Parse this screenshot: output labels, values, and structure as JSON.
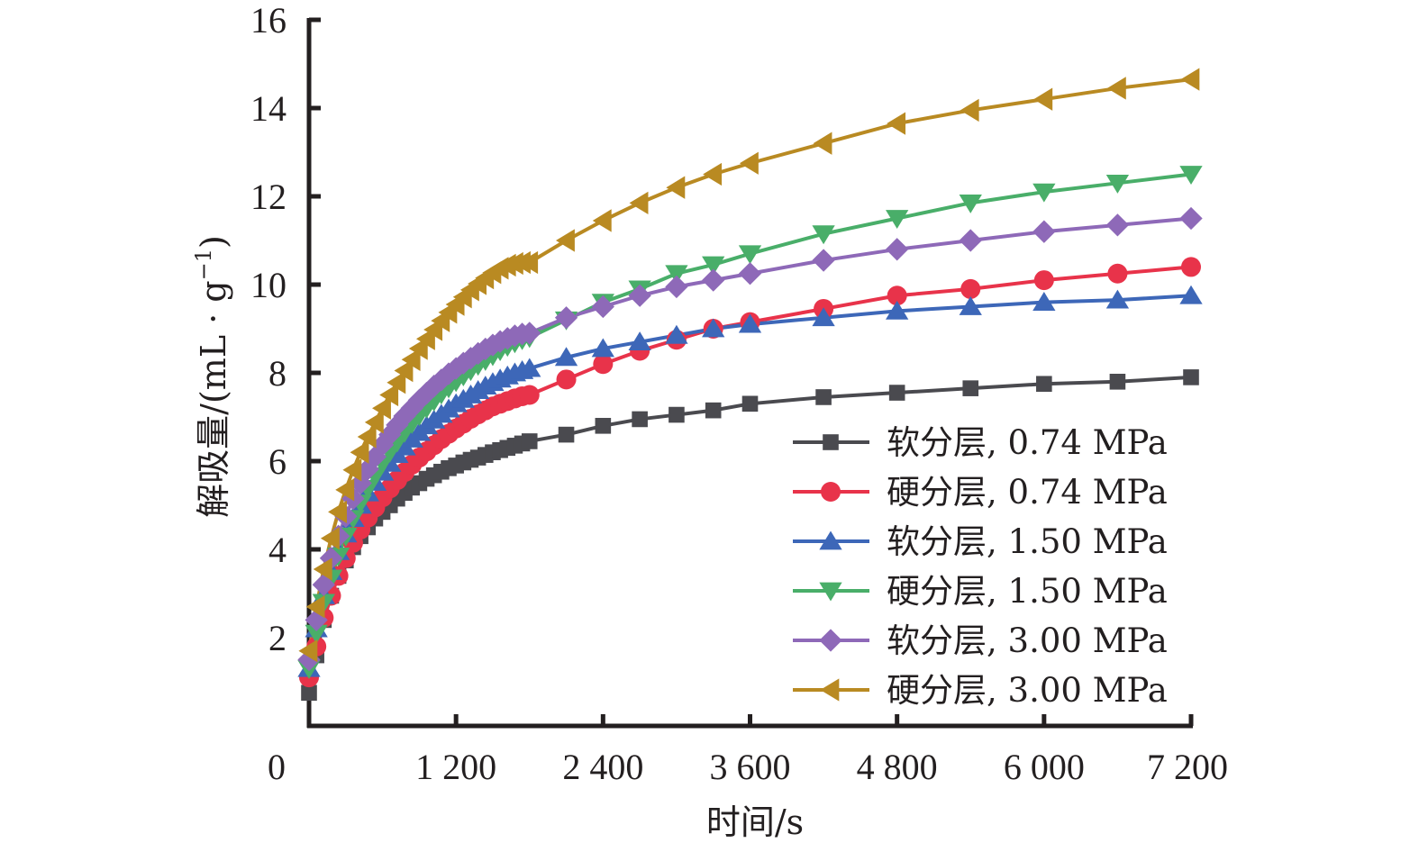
{
  "chart_data": {
    "type": "line",
    "title": "",
    "xlabel": "时间/s",
    "ylabel": "解吸量/(mL · g",
    "ylabel_sup": "−1",
    "ylabel_close": ")",
    "xlim": [
      0,
      7200
    ],
    "ylim": [
      0,
      16
    ],
    "x_ticks": [
      0,
      1200,
      2400,
      3600,
      4800,
      6000,
      7200
    ],
    "x_tick_labels": [
      "0",
      "1 200",
      "2 400",
      "3 600",
      "4 800",
      "6 000",
      "7 200"
    ],
    "y_ticks": [
      2,
      4,
      6,
      8,
      10,
      12,
      14,
      16
    ],
    "y_tick_labels": [
      "2",
      "4",
      "6",
      "8",
      "10",
      "12",
      "14",
      "16"
    ],
    "grid": false,
    "legend_position": "bottom-right",
    "x": [
      0,
      60,
      120,
      180,
      240,
      300,
      360,
      420,
      480,
      540,
      600,
      660,
      720,
      780,
      840,
      900,
      960,
      1020,
      1080,
      1140,
      1200,
      1260,
      1320,
      1380,
      1440,
      1500,
      1560,
      1620,
      1680,
      1740,
      1800,
      2100,
      2400,
      2700,
      3000,
      3300,
      3600,
      4200,
      4800,
      5400,
      6000,
      6600,
      7200
    ],
    "series": [
      {
        "name": "软分层, 0.74 MPa",
        "color": "#4a4a4f",
        "marker": "square",
        "values": [
          0.75,
          1.6,
          2.4,
          2.95,
          3.4,
          3.75,
          4.05,
          4.3,
          4.5,
          4.7,
          4.85,
          5.0,
          5.15,
          5.28,
          5.4,
          5.5,
          5.6,
          5.68,
          5.76,
          5.84,
          5.9,
          5.97,
          6.03,
          6.08,
          6.14,
          6.2,
          6.25,
          6.3,
          6.35,
          6.4,
          6.45,
          6.6,
          6.8,
          6.95,
          7.05,
          7.15,
          7.3,
          7.45,
          7.55,
          7.65,
          7.75,
          7.8,
          7.9
        ]
      },
      {
        "name": "硬分层, 0.74 MPa",
        "color": "#e8334a",
        "marker": "circle",
        "values": [
          1.1,
          1.8,
          2.45,
          2.95,
          3.4,
          3.8,
          4.15,
          4.45,
          4.72,
          4.95,
          5.18,
          5.38,
          5.57,
          5.75,
          5.92,
          6.08,
          6.22,
          6.36,
          6.5,
          6.62,
          6.74,
          6.85,
          6.96,
          7.06,
          7.15,
          7.24,
          7.3,
          7.36,
          7.42,
          7.47,
          7.5,
          7.85,
          8.2,
          8.5,
          8.75,
          9.0,
          9.15,
          9.45,
          9.75,
          9.9,
          10.1,
          10.25,
          10.4
        ]
      },
      {
        "name": "软分层, 1.50 MPa",
        "color": "#3d67b8",
        "marker": "triangle-up",
        "values": [
          1.3,
          2.2,
          2.95,
          3.5,
          3.95,
          4.35,
          4.7,
          5.0,
          5.28,
          5.52,
          5.75,
          5.95,
          6.15,
          6.32,
          6.5,
          6.65,
          6.8,
          6.93,
          7.06,
          7.18,
          7.3,
          7.4,
          7.5,
          7.6,
          7.7,
          7.78,
          7.86,
          7.93,
          8.0,
          8.05,
          8.1,
          8.35,
          8.55,
          8.7,
          8.85,
          9.0,
          9.1,
          9.25,
          9.4,
          9.5,
          9.6,
          9.65,
          9.75
        ]
      },
      {
        "name": "硬分层, 1.50 MPa",
        "color": "#49ae69",
        "marker": "triangle-down",
        "values": [
          1.3,
          2.1,
          2.8,
          3.35,
          3.85,
          4.3,
          4.7,
          5.05,
          5.38,
          5.67,
          5.95,
          6.2,
          6.43,
          6.65,
          6.85,
          7.03,
          7.2,
          7.36,
          7.52,
          7.66,
          7.8,
          7.93,
          8.05,
          8.17,
          8.28,
          8.39,
          8.5,
          8.6,
          8.68,
          8.75,
          8.8,
          9.2,
          9.6,
          9.9,
          10.25,
          10.45,
          10.7,
          11.15,
          11.5,
          11.85,
          12.1,
          12.3,
          12.5
        ]
      },
      {
        "name": "软分层, 3.00 MPa",
        "color": "#8e69b8",
        "marker": "diamond",
        "values": [
          1.5,
          2.4,
          3.2,
          3.8,
          4.3,
          4.75,
          5.15,
          5.5,
          5.82,
          6.1,
          6.37,
          6.6,
          6.82,
          7.02,
          7.2,
          7.38,
          7.54,
          7.7,
          7.84,
          7.98,
          8.1,
          8.22,
          8.33,
          8.44,
          8.54,
          8.63,
          8.71,
          8.78,
          8.84,
          8.88,
          8.9,
          9.25,
          9.5,
          9.75,
          9.95,
          10.1,
          10.25,
          10.55,
          10.8,
          11.0,
          11.2,
          11.35,
          11.5
        ]
      },
      {
        "name": "硬分层, 3.00 MPa",
        "color": "#b98a22",
        "marker": "triangle-left",
        "values": [
          1.7,
          2.7,
          3.55,
          4.25,
          4.85,
          5.35,
          5.8,
          6.2,
          6.55,
          6.88,
          7.2,
          7.5,
          7.78,
          8.05,
          8.3,
          8.55,
          8.77,
          8.98,
          9.18,
          9.37,
          9.55,
          9.72,
          9.88,
          10.02,
          10.15,
          10.27,
          10.37,
          10.44,
          10.48,
          10.5,
          10.5,
          11.0,
          11.45,
          11.85,
          12.2,
          12.5,
          12.75,
          13.2,
          13.65,
          13.95,
          14.2,
          14.45,
          14.65
        ]
      }
    ]
  }
}
